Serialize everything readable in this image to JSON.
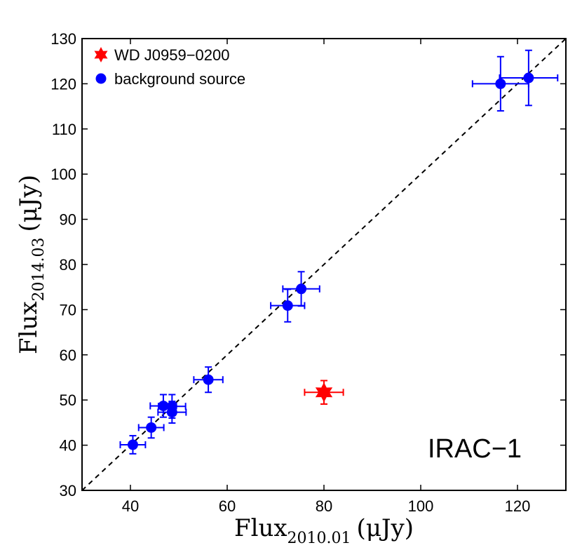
{
  "chart_data": {
    "type": "scatter",
    "title": "",
    "xlabel": {
      "base": "Flux",
      "sub": "2010.01",
      "unit": "(μJy)"
    },
    "ylabel": {
      "base": "Flux",
      "sub": "2014.03",
      "unit": "(μJy)"
    },
    "xlim": [
      30,
      130
    ],
    "ylim": [
      30,
      130
    ],
    "xticks": [
      40,
      60,
      80,
      100,
      120
    ],
    "yticks": [
      30,
      40,
      50,
      60,
      70,
      80,
      90,
      100,
      110,
      120,
      130
    ],
    "grid": false,
    "legend_position": "top-left",
    "annotation": "IRAC−1",
    "reference_line": {
      "label": "one-to-one line",
      "style": "dashed",
      "from": [
        30,
        30
      ],
      "to": [
        130,
        130
      ]
    },
    "series": [
      {
        "name": "WD J0959−0200",
        "marker": "star",
        "color": "#ff0000",
        "points": [
          {
            "x": 80.0,
            "y": 51.7,
            "xerr": 4.0,
            "yerr": 2.6
          }
        ]
      },
      {
        "name": "background source",
        "marker": "circle",
        "color": "#0000ff",
        "points": [
          {
            "x": 40.5,
            "y": 40.1,
            "xerr": 2.6,
            "yerr": 2.0
          },
          {
            "x": 44.3,
            "y": 43.9,
            "xerr": 2.6,
            "yerr": 2.3
          },
          {
            "x": 46.8,
            "y": 48.7,
            "xerr": 2.7,
            "yerr": 2.5
          },
          {
            "x": 48.6,
            "y": 48.6,
            "xerr": 2.8,
            "yerr": 2.6
          },
          {
            "x": 48.6,
            "y": 47.3,
            "xerr": 2.9,
            "yerr": 2.4
          },
          {
            "x": 56.1,
            "y": 54.5,
            "xerr": 3.0,
            "yerr": 2.8
          },
          {
            "x": 72.5,
            "y": 70.9,
            "xerr": 3.5,
            "yerr": 3.6
          },
          {
            "x": 75.3,
            "y": 74.6,
            "xerr": 3.8,
            "yerr": 3.8
          },
          {
            "x": 116.5,
            "y": 120.0,
            "xerr": 5.8,
            "yerr": 6.0
          },
          {
            "x": 122.3,
            "y": 121.3,
            "xerr": 6.0,
            "yerr": 6.1
          }
        ]
      }
    ]
  }
}
